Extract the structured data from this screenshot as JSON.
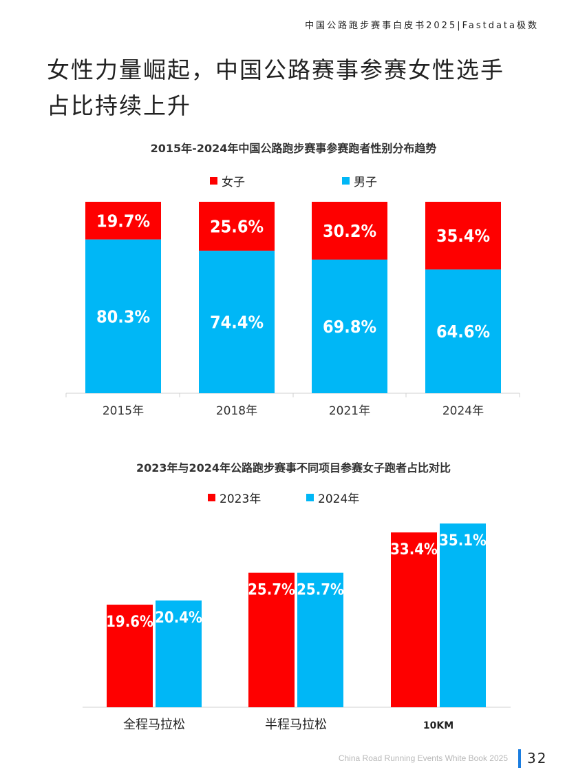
{
  "header": {
    "text": "中国公路跑步赛事白皮书2025|Fastdata极数"
  },
  "title": {
    "line1": "女性力量崛起，中国公路赛事参赛女性选手",
    "line2": "占比持续上升"
  },
  "colors": {
    "red": "#fe0000",
    "blue": "#00b7f6"
  },
  "chart_data": [
    {
      "type": "bar",
      "stacked": true,
      "title": "2015年-2024年中国公路跑步赛事参赛跑者性别分布趋势",
      "categories": [
        "2015年",
        "2018年",
        "2021年",
        "2024年"
      ],
      "series": [
        {
          "name": "女子",
          "values": [
            19.7,
            25.6,
            30.2,
            35.4
          ],
          "labels": [
            "19.7%",
            "25.6%",
            "30.2%",
            "35.4%"
          ]
        },
        {
          "name": "男子",
          "values": [
            80.3,
            74.4,
            69.8,
            64.6
          ],
          "labels": [
            "80.3%",
            "74.4%",
            "69.8%",
            "64.6%"
          ]
        }
      ],
      "ylim": [
        0,
        100
      ],
      "legend": "top",
      "grid": false
    },
    {
      "type": "bar",
      "stacked": false,
      "title": "2023年与2024年公路跑步赛事不同项目参赛女子跑者占比对比",
      "categories": [
        "全程马拉松",
        "半程马拉松",
        "10KM"
      ],
      "series": [
        {
          "name": "2023年",
          "values": [
            19.6,
            25.7,
            33.4
          ],
          "labels": [
            "19.6%",
            "25.7%",
            "33.4%"
          ]
        },
        {
          "name": "2024年",
          "values": [
            20.4,
            25.7,
            35.1
          ],
          "labels": [
            "20.4%",
            "25.7%",
            "35.1%"
          ]
        }
      ],
      "ylim": [
        0,
        40
      ],
      "legend": "top",
      "grid": false
    }
  ],
  "footer": {
    "text": "China Road Running Events White Book 2025",
    "page": "32"
  }
}
